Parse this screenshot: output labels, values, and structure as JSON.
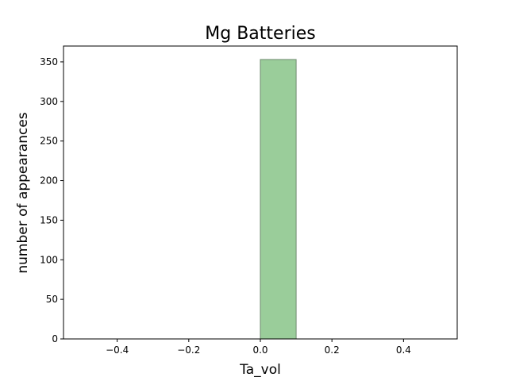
{
  "chart_data": {
    "type": "bar",
    "title": "Mg Batteries",
    "xlabel": "Ta_vol",
    "ylabel": "number of appearances",
    "bins": [
      {
        "x0": -0.5,
        "x1": -0.4,
        "value": 0
      },
      {
        "x0": -0.4,
        "x1": -0.3,
        "value": 0
      },
      {
        "x0": -0.3,
        "x1": -0.2,
        "value": 0
      },
      {
        "x0": -0.2,
        "x1": -0.1,
        "value": 0
      },
      {
        "x0": -0.1,
        "x1": 0.0,
        "value": 0
      },
      {
        "x0": 0.0,
        "x1": 0.1,
        "value": 353
      },
      {
        "x0": 0.1,
        "x1": 0.2,
        "value": 0
      },
      {
        "x0": 0.2,
        "x1": 0.3,
        "value": 0
      },
      {
        "x0": 0.3,
        "x1": 0.4,
        "value": 0
      },
      {
        "x0": 0.4,
        "x1": 0.5,
        "value": 0
      }
    ],
    "xlim": [
      -0.55,
      0.55
    ],
    "ylim": [
      0,
      370
    ],
    "xticks": [
      -0.4,
      -0.2,
      0.0,
      0.2,
      0.4
    ],
    "xtick_labels": [
      "−0.4",
      "−0.2",
      "0.0",
      "0.2",
      "0.4"
    ],
    "yticks": [
      0,
      50,
      100,
      150,
      200,
      250,
      300,
      350
    ],
    "ytick_labels": [
      "0",
      "50",
      "100",
      "150",
      "200",
      "250",
      "300",
      "350"
    ],
    "grid": false,
    "colors": {
      "bar_fill": "#9acd9a",
      "bar_edge": "#6e8a6e"
    }
  }
}
